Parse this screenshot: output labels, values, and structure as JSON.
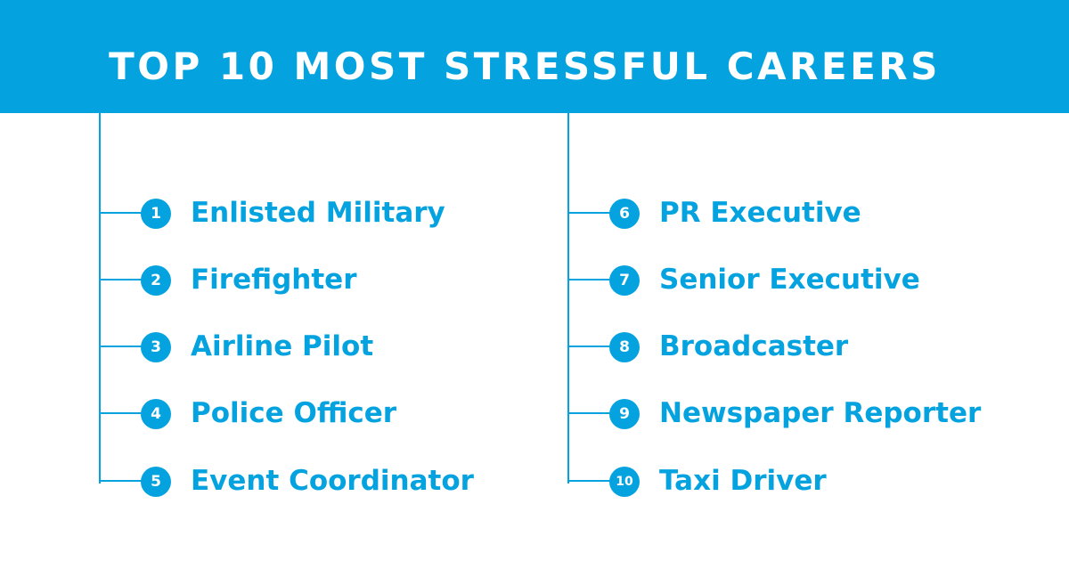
{
  "title": "TOP 10 MOST STRESSFUL CAREERS",
  "colors": {
    "accent": "#04A3E0",
    "background": "#FFFFFF",
    "title_text": "#FFFFFF"
  },
  "careers": [
    {
      "rank": "1",
      "name": "Enlisted Military"
    },
    {
      "rank": "2",
      "name": "Firefighter"
    },
    {
      "rank": "3",
      "name": "Airline Pilot"
    },
    {
      "rank": "4",
      "name": "Police Officer"
    },
    {
      "rank": "5",
      "name": "Event Coordinator"
    },
    {
      "rank": "6",
      "name": "PR Executive"
    },
    {
      "rank": "7",
      "name": "Senior Executive"
    },
    {
      "rank": "8",
      "name": "Broadcaster"
    },
    {
      "rank": "9",
      "name": "Newspaper Reporter"
    },
    {
      "rank": "10",
      "name": "Taxi Driver"
    }
  ]
}
